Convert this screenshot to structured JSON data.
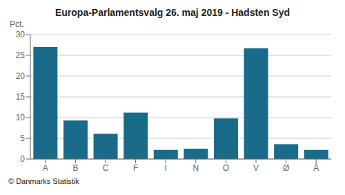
{
  "chart_data": {
    "type": "bar",
    "title": "Europa-Parlamentsvalg 26. maj 2019 - Hadsten Syd",
    "categories": [
      "A",
      "B",
      "C",
      "F",
      "I",
      "N",
      "O",
      "V",
      "Ø",
      "Å"
    ],
    "values": [
      27.0,
      9.3,
      6.1,
      11.2,
      2.2,
      2.5,
      9.8,
      26.7,
      3.6,
      2.2
    ],
    "color": "#1a6b8a",
    "ylim": [
      0,
      30
    ],
    "yticks": [
      0,
      5,
      10,
      15,
      20,
      25,
      30
    ],
    "grid": true,
    "y_label": "Pct.",
    "footer": "© Danmarks Statistik"
  }
}
